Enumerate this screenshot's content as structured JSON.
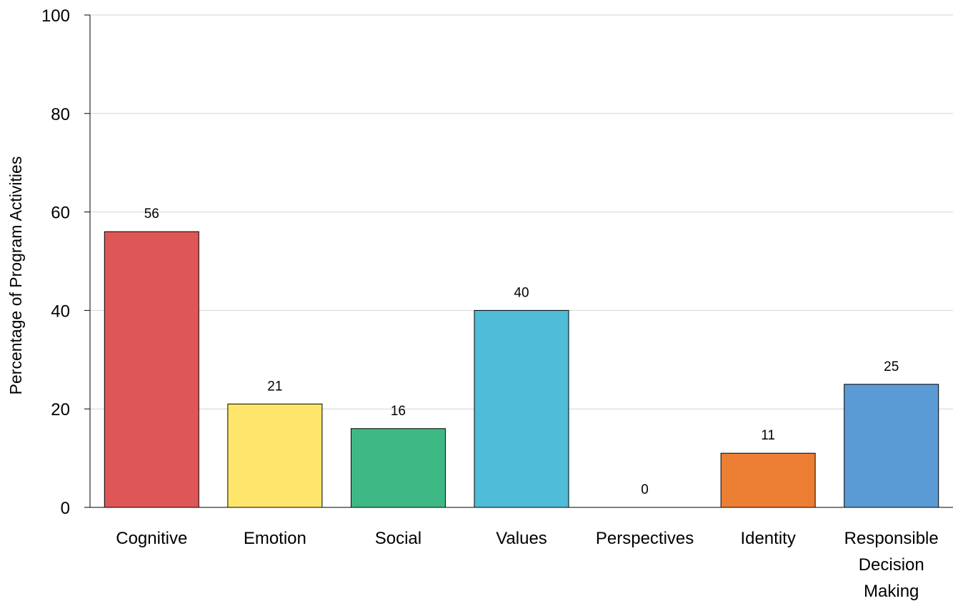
{
  "chart_data": {
    "type": "bar",
    "title": "",
    "xlabel": "",
    "ylabel": "Percentage of Program Activities",
    "ylim": [
      0,
      100
    ],
    "yticks": [
      0,
      20,
      40,
      60,
      80,
      100
    ],
    "grid": true,
    "legend": "none",
    "categories": [
      [
        "Cognitive"
      ],
      [
        "Emotion"
      ],
      [
        "Social"
      ],
      [
        "Values"
      ],
      [
        "Perspectives"
      ],
      [
        "Identity"
      ],
      [
        "Responsible",
        "Decision",
        "Making"
      ]
    ],
    "values": [
      56,
      21,
      16,
      40,
      0,
      11,
      25
    ],
    "colors": [
      "#df5656",
      "#fde66b",
      "#3eb985",
      "#4fbcd8",
      "#ffffff",
      "#ec7e33",
      "#5b9bd5"
    ]
  }
}
